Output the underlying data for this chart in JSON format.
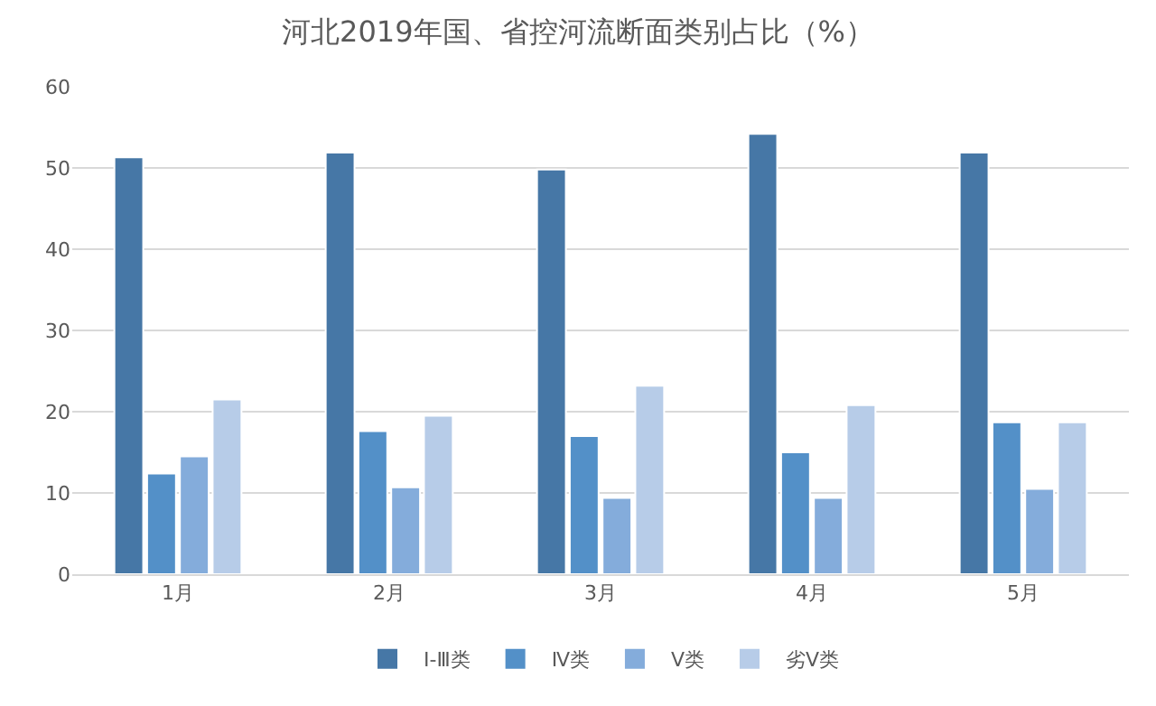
{
  "chart_data": {
    "type": "bar",
    "title": "河北2019年国、省控河流断面类别占比（%）",
    "categories": [
      "1月",
      "2月",
      "3月",
      "4月",
      "5月"
    ],
    "series": [
      {
        "name": "Ⅰ-Ⅲ类",
        "color": "#4677a6",
        "values": [
          51.3,
          51.9,
          49.8,
          54.2,
          51.9
        ]
      },
      {
        "name": "Ⅳ类",
        "color": "#5390c8",
        "values": [
          12.4,
          17.6,
          17.0,
          15.0,
          18.7
        ]
      },
      {
        "name": "Ⅴ类",
        "color": "#84acdb",
        "values": [
          14.5,
          10.7,
          9.4,
          9.4,
          10.5
        ]
      },
      {
        "name": "劣Ⅴ类",
        "color": "#b7cce8",
        "values": [
          21.5,
          19.5,
          23.2,
          20.8,
          18.7
        ]
      }
    ],
    "ylim": [
      0,
      60
    ],
    "yticks": [
      0,
      10,
      20,
      30,
      40,
      50,
      60
    ],
    "grid": "y",
    "legend": "bottom"
  }
}
